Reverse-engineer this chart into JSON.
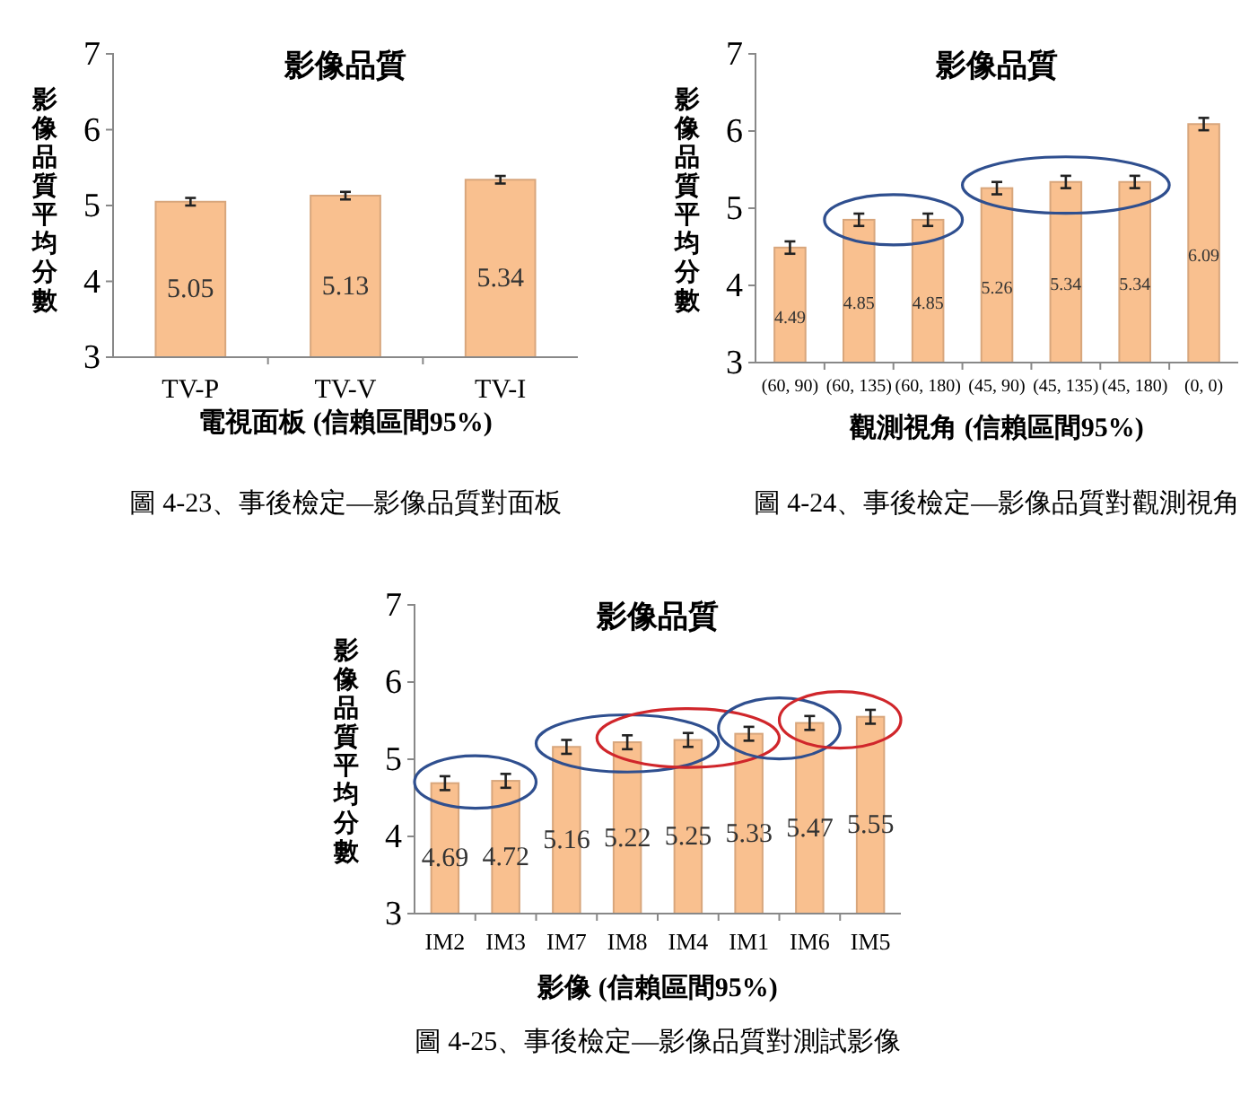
{
  "chart_data": [
    {
      "type": "bar",
      "title": "影像品質",
      "xlabel": "電視面板 (信賴區間95%)",
      "ylabel": "影像品質平均分數",
      "categories": [
        "TV-P",
        "TV-V",
        "TV-I"
      ],
      "series": [
        {
          "color": "#f9c08f",
          "values": [
            5.05,
            5.13,
            5.34
          ],
          "errors": [
            0.05,
            0.05,
            0.05
          ]
        }
      ],
      "ylim": [
        3,
        7
      ],
      "yticks": [
        3,
        4,
        5,
        6,
        7
      ],
      "data_labels": true,
      "annotations": [
        "圖 4-23、事後檢定—影像品質對面板"
      ]
    },
    {
      "type": "bar",
      "title": "影像品質",
      "xlabel": "觀測視角 (信賴區間95%)",
      "ylabel": "影像品質平均分數",
      "categories": [
        "(60, 90)",
        "(60, 135)",
        "(60, 180)",
        "(45, 90)",
        "(45, 135)",
        "(45, 180)",
        "(0, 0)"
      ],
      "series": [
        {
          "color": "#f9c08f",
          "values": [
            4.49,
            4.85,
            4.85,
            5.26,
            5.34,
            5.34,
            6.09
          ],
          "errors": [
            0.08,
            0.08,
            0.08,
            0.08,
            0.08,
            0.08,
            0.08
          ]
        }
      ],
      "ylim": [
        3,
        7
      ],
      "yticks": [
        3,
        4,
        5,
        6,
        7
      ],
      "data_labels": true,
      "annotations": [
        "圖 4-24、事後檢定—影像品質對觀測視角"
      ]
    },
    {
      "type": "bar",
      "title": "影像品質",
      "xlabel": "影像 (信賴區間95%)",
      "ylabel": "影像品質平均分數",
      "categories": [
        "IM2",
        "IM3",
        "IM7",
        "IM8",
        "IM4",
        "IM1",
        "IM6",
        "IM5"
      ],
      "series": [
        {
          "color": "#f9c08f",
          "values": [
            4.69,
            4.72,
            5.16,
            5.22,
            5.25,
            5.33,
            5.47,
            5.55
          ],
          "errors": [
            0.09,
            0.09,
            0.09,
            0.09,
            0.09,
            0.09,
            0.09,
            0.09
          ]
        }
      ],
      "ylim": [
        3,
        7
      ],
      "yticks": [
        3,
        4,
        5,
        6,
        7
      ],
      "data_labels": true,
      "annotations": [
        "圖 4-25、事後檢定—影像品質對測試影像"
      ]
    }
  ]
}
